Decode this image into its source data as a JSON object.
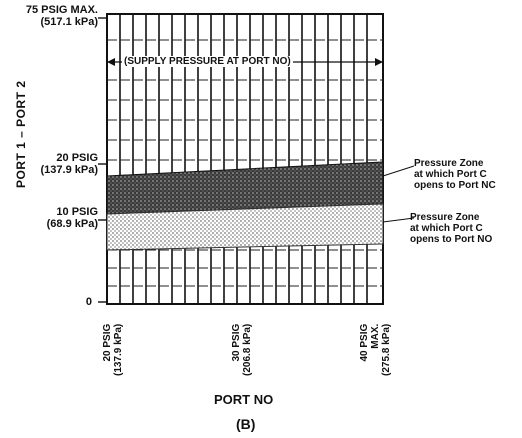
{
  "y_labels": {
    "max_psig": "75 PSIG MAX.",
    "max_kpa": "(517.1 kPa)",
    "mid_psig": "20 PSIG",
    "mid_kpa": "(137.9 kPa)",
    "low_psig": "10 PSIG",
    "low_kpa": "(68.9 kPa)",
    "zero": "0"
  },
  "y_axis_title": "PORT 1 – PORT 2",
  "x_labels": [
    {
      "line1": "20 PSIG",
      "line2": "(137.9 kPa)"
    },
    {
      "line1": "30 PSIG",
      "line2": "(206.8 kPa)"
    },
    {
      "line1": "40 PSIG",
      "line2": "MAX.",
      "line3": "(275.8 kPa)"
    }
  ],
  "x_axis_title": "PORT NO",
  "supply_note": "(SUPPLY PRESSURE AT PORT NO)",
  "zones": [
    {
      "line1": "Pressure Zone",
      "line2": "at which Port C",
      "line3": "opens to Port NC"
    },
    {
      "line1": "Pressure Zone",
      "line2": "at which Port C",
      "line3": "opens to Port NO"
    }
  ],
  "caption": "(B)",
  "colors": {
    "ink": "#111111",
    "zone_nc": "#2a2a2a",
    "zone_no": "#9a9a9a"
  }
}
